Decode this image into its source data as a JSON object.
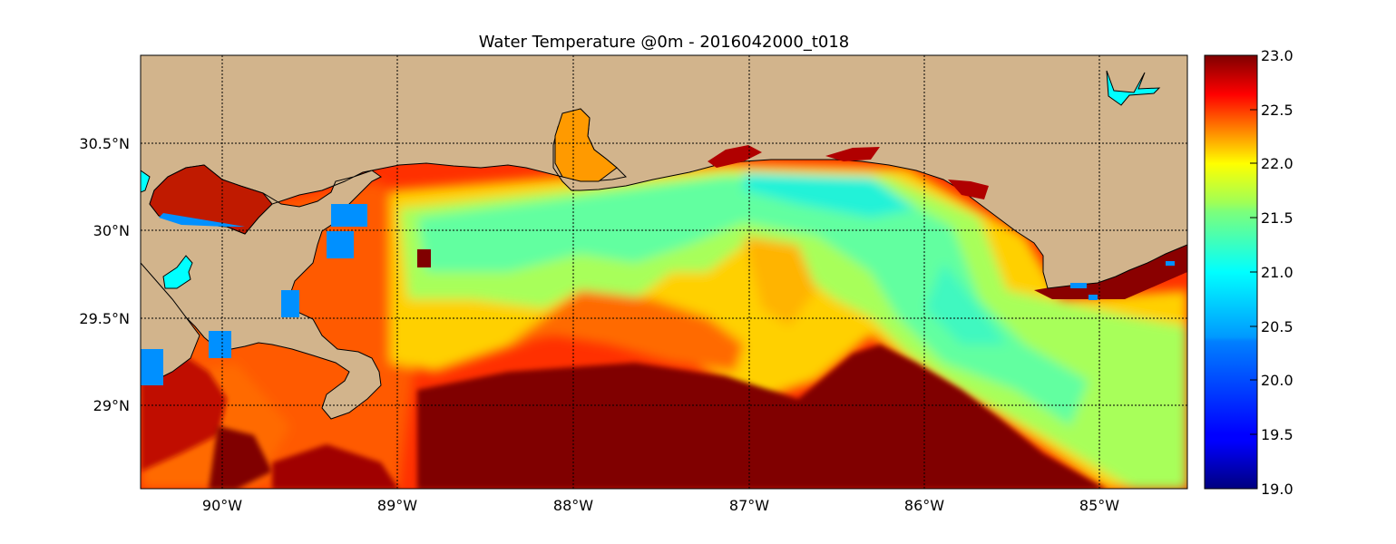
{
  "title": "Water Temperature @0m - 2016042000_t018",
  "axes": {
    "x_ticks": [
      "90°W",
      "89°W",
      "88°W",
      "87°W",
      "86°W",
      "85°W"
    ],
    "y_ticks": [
      "30.5°N",
      "30°N",
      "29.5°N",
      "29°N"
    ]
  },
  "colorbar": {
    "ticks": [
      "23.0",
      "22.5",
      "22.0",
      "21.5",
      "21.0",
      "20.5",
      "20.0",
      "19.5",
      "19.0"
    ],
    "min": 19.0,
    "max": 23.0,
    "colormap": "jet"
  },
  "colors": {
    "land": "#D2B48C",
    "lake": "#00FFFF",
    "warm": "#800000",
    "cool": "#00E5C8"
  }
}
